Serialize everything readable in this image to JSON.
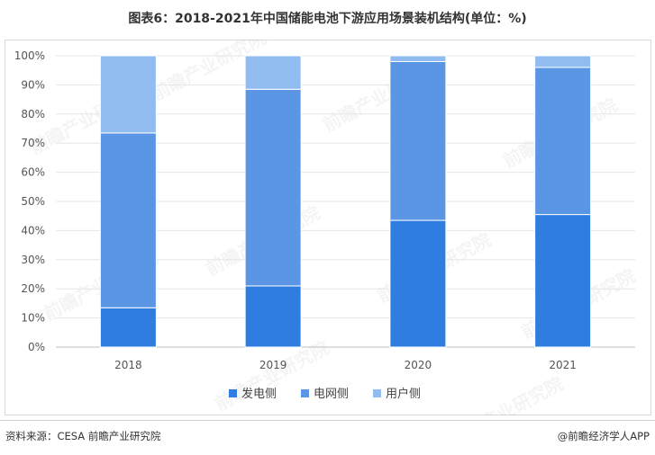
{
  "title": "图表6：2018-2021年中国储能电池下游应用场景装机结构(单位：%)",
  "source": "资料来源：CESA 前瞻产业研究院",
  "credit": "@前瞻经济学人APP",
  "watermark": "前瞻产业研究院",
  "colors": {
    "series": [
      "#2f7de1",
      "#5a96e3",
      "#91bcf0"
    ],
    "grid": "#e6e6e6",
    "axis": "#bfbfbf"
  },
  "chart_data": {
    "type": "bar",
    "stacked": true,
    "categories": [
      "2018",
      "2019",
      "2020",
      "2021"
    ],
    "series": [
      {
        "name": "发电侧",
        "values": [
          13.5,
          21,
          43.5,
          45.5
        ]
      },
      {
        "name": "电网侧",
        "values": [
          60,
          67.5,
          54.5,
          50.5
        ]
      },
      {
        "name": "用户侧",
        "values": [
          26.5,
          11.5,
          2,
          4
        ]
      }
    ],
    "ylim": [
      0,
      100
    ],
    "yticks": [
      "0%",
      "10%",
      "20%",
      "30%",
      "40%",
      "50%",
      "60%",
      "70%",
      "80%",
      "90%",
      "100%"
    ],
    "grid": true,
    "legend": "bottom-center",
    "xlabel": "",
    "ylabel": ""
  }
}
